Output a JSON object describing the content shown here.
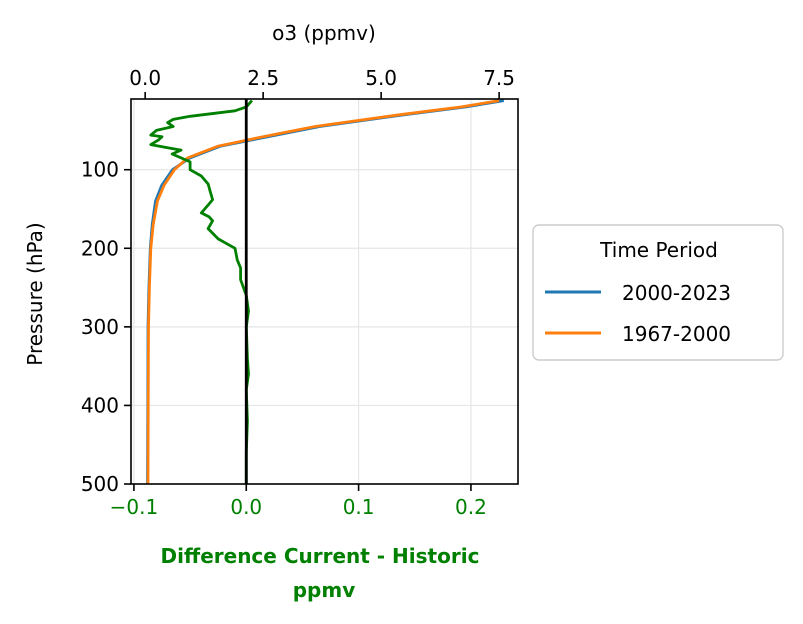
{
  "chart_data": {
    "type": "line",
    "title": "",
    "colors": {
      "series_2000_2023": "#1f77b4",
      "series_1967_2000": "#ff7f0e",
      "difference": "#008000",
      "zero_line": "#000000",
      "grid": "#e6e6e6"
    },
    "top_axis": {
      "label": "o3 (ppmv)",
      "range": [
        -0.3,
        7.9
      ],
      "ticks": [
        0.0,
        2.5,
        5.0,
        7.5
      ],
      "tick_labels": [
        "0.0",
        "2.5",
        "5.0",
        "7.5"
      ]
    },
    "bottom_axis": {
      "label_line1": "Difference  Current - Historic",
      "label_line2": "ppmv",
      "range": [
        -0.1026,
        0.2419
      ],
      "ticks": [
        -0.1,
        0.0,
        0.1,
        0.2
      ],
      "tick_labels": [
        "−0.1",
        "0.0",
        "0.1",
        "0.2"
      ]
    },
    "y_axis": {
      "label": "Pressure (hPa)",
      "range_top": 10,
      "range_bottom": 500,
      "ticks": [
        100,
        200,
        300,
        400,
        500
      ],
      "tick_labels": [
        "100",
        "200",
        "300",
        "400",
        "500"
      ]
    },
    "grid": true,
    "legend": {
      "title": "Time Period",
      "placement": "outside-right",
      "entries": [
        "2000-2023",
        "1967-2000"
      ]
    },
    "series": [
      {
        "name": "2000-2023",
        "axis": "top",
        "points": [
          [
            7.6,
            12
          ],
          [
            6.8,
            20
          ],
          [
            5.5,
            30
          ],
          [
            3.7,
            45
          ],
          [
            2.6,
            58
          ],
          [
            1.6,
            70
          ],
          [
            0.95,
            85
          ],
          [
            0.58,
            100
          ],
          [
            0.35,
            120
          ],
          [
            0.22,
            140
          ],
          [
            0.15,
            170
          ],
          [
            0.11,
            200
          ],
          [
            0.08,
            250
          ],
          [
            0.06,
            300
          ],
          [
            0.055,
            400
          ],
          [
            0.05,
            500
          ]
        ]
      },
      {
        "name": "1967-2000",
        "axis": "top",
        "points": [
          [
            7.5,
            12
          ],
          [
            6.7,
            20
          ],
          [
            5.4,
            30
          ],
          [
            3.6,
            45
          ],
          [
            2.5,
            58
          ],
          [
            1.55,
            70
          ],
          [
            0.9,
            85
          ],
          [
            0.62,
            100
          ],
          [
            0.4,
            120
          ],
          [
            0.26,
            140
          ],
          [
            0.17,
            170
          ],
          [
            0.12,
            200
          ],
          [
            0.09,
            250
          ],
          [
            0.07,
            300
          ],
          [
            0.065,
            400
          ],
          [
            0.06,
            500
          ]
        ]
      },
      {
        "name": "Difference",
        "axis": "bottom",
        "points": [
          [
            0.005,
            12
          ],
          [
            0.0,
            20
          ],
          [
            -0.01,
            25
          ],
          [
            -0.05,
            32
          ],
          [
            -0.065,
            36
          ],
          [
            -0.07,
            40
          ],
          [
            -0.065,
            45
          ],
          [
            -0.08,
            50
          ],
          [
            -0.085,
            56
          ],
          [
            -0.075,
            58
          ],
          [
            -0.078,
            62
          ],
          [
            -0.085,
            68
          ],
          [
            -0.07,
            72
          ],
          [
            -0.058,
            75
          ],
          [
            -0.066,
            80
          ],
          [
            -0.058,
            85
          ],
          [
            -0.05,
            90
          ],
          [
            -0.05,
            100
          ],
          [
            -0.04,
            108
          ],
          [
            -0.034,
            118
          ],
          [
            -0.032,
            128
          ],
          [
            -0.03,
            138
          ],
          [
            -0.034,
            145
          ],
          [
            -0.037,
            150
          ],
          [
            -0.04,
            155
          ],
          [
            -0.033,
            160
          ],
          [
            -0.03,
            165
          ],
          [
            -0.034,
            175
          ],
          [
            -0.025,
            188
          ],
          [
            -0.01,
            200
          ],
          [
            -0.008,
            215
          ],
          [
            -0.005,
            225
          ],
          [
            -0.005,
            240
          ],
          [
            0.0,
            260
          ],
          [
            0.002,
            280
          ],
          [
            0.0,
            300
          ],
          [
            0.001,
            340
          ],
          [
            0.002,
            360
          ],
          [
            0.0,
            380
          ],
          [
            0.001,
            420
          ],
          [
            0.0,
            460
          ],
          [
            0.0,
            500
          ]
        ]
      }
    ]
  }
}
